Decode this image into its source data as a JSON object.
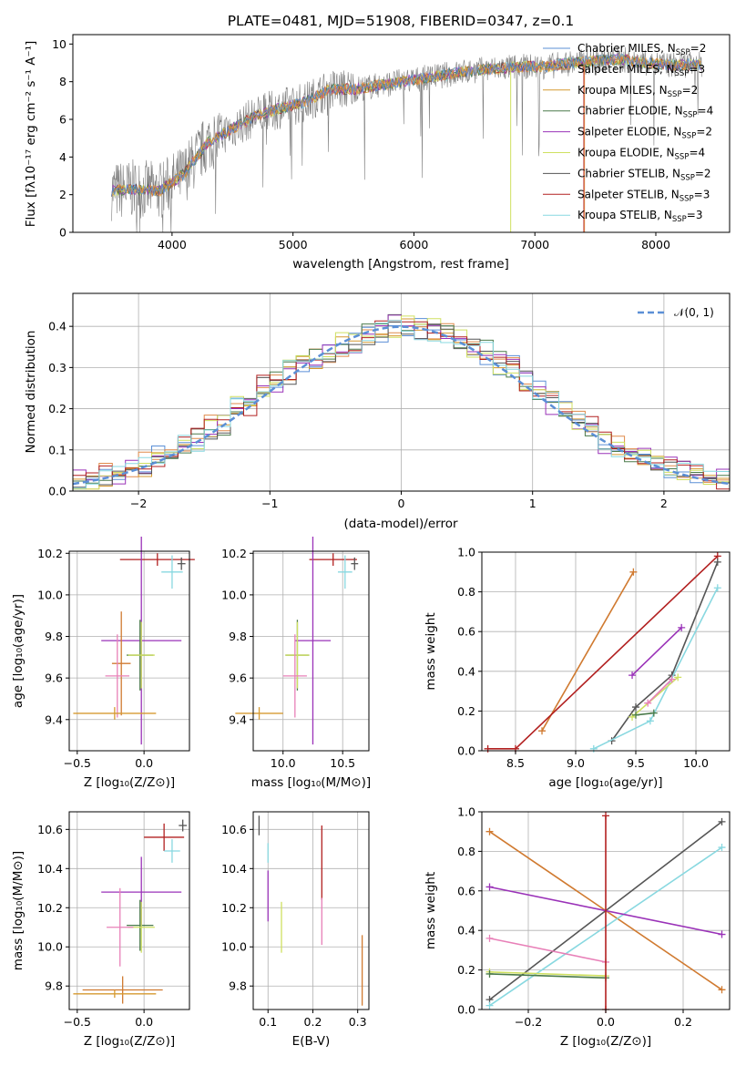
{
  "title": "PLATE=0481, MJD=51908, FIBERID=0347, z=0.1",
  "colors": {
    "c_miles": "#5b8fd6",
    "s_miles": "#e08a4a",
    "k_miles": "#d69a30",
    "c_elodie": "#4a7a4a",
    "s_elodie": "#9a32b8",
    "k_elodie": "#cfe060",
    "c_stelib": "#555555",
    "s_stelib": "#b22020",
    "k_stelib": "#88d8e0",
    "pink": "#e880b8",
    "orange": "#d07a30",
    "olive": "#9ac040",
    "gray": "#7f7f7f",
    "norm": "#5b8fd6"
  },
  "spectrum": {
    "xlabel": "wavelength [Angstrom, rest frame]",
    "ylabel": "Flux [fλ10⁻¹⁷ erg cm⁻² s⁻¹ A⁻¹]",
    "xticks": [
      "4000",
      "5000",
      "6000",
      "7000",
      "8000"
    ],
    "yticks": [
      "0",
      "2",
      "4",
      "6",
      "8",
      "10"
    ],
    "legend": [
      {
        "text": "Chabrier MILES, N",
        "sub": "SSP",
        "val": "=2",
        "color": "c_miles"
      },
      {
        "text": "Salpeter MILES, N",
        "sub": "SSP",
        "val": "=3",
        "color": "s_miles"
      },
      {
        "text": "Kroupa MILES, N",
        "sub": "SSP",
        "val": "=2",
        "color": "k_miles"
      },
      {
        "text": "Chabrier ELODIE, N",
        "sub": "SSP",
        "val": "=4",
        "color": "c_elodie"
      },
      {
        "text": "Salpeter ELODIE, N",
        "sub": "SSP",
        "val": "=2",
        "color": "s_elodie"
      },
      {
        "text": "Kroupa ELODIE, N",
        "sub": "SSP",
        "val": "=4",
        "color": "k_elodie"
      },
      {
        "text": "Chabrier STELIB, N",
        "sub": "SSP",
        "val": "=2",
        "color": "c_stelib"
      },
      {
        "text": "Salpeter STELIB, N",
        "sub": "SSP",
        "val": "=3",
        "color": "s_stelib"
      },
      {
        "text": "Kroupa STELIB, N",
        "sub": "SSP",
        "val": "=3",
        "color": "k_stelib"
      }
    ]
  },
  "hist": {
    "xlabel": "(data-model)/error",
    "ylabel": "Normed distribution",
    "xticks": [
      "−2",
      "−1",
      "0",
      "1",
      "2"
    ],
    "yticks": [
      "0.0",
      "0.1",
      "0.2",
      "0.3",
      "0.4"
    ],
    "legend_label": "𝒩(0, 1)"
  },
  "panels": {
    "age_z": {
      "xlabel": "Z [log₁₀(Z/Z⊙)]",
      "ylabel": "age  [log₁₀(age/yr)]",
      "xticks": [
        "−0.5",
        "0.0"
      ],
      "yticks": [
        "9.4",
        "9.6",
        "9.8",
        "10.0",
        "10.2"
      ]
    },
    "age_mass": {
      "xlabel": "mass [log₁₀(M/M⊙)]",
      "xticks": [
        "10.0",
        "10.5"
      ],
      "yticks": [
        "9.4",
        "9.6",
        "9.8",
        "10.0",
        "10.2"
      ]
    },
    "mw_age": {
      "xlabel": "age  [log₁₀(age/yr)]",
      "ylabel": "mass weight",
      "xticks": [
        "8.5",
        "9.0",
        "9.5",
        "10.0"
      ],
      "yticks": [
        "0.0",
        "0.2",
        "0.4",
        "0.6",
        "0.8",
        "1.0"
      ]
    },
    "mass_z": {
      "xlabel": "Z [log₁₀(Z/Z⊙)]",
      "ylabel": "mass [log₁₀(M/M⊙)]",
      "xticks": [
        "−0.5",
        "0.0"
      ],
      "yticks": [
        "9.8",
        "10.0",
        "10.2",
        "10.4",
        "10.6"
      ]
    },
    "mass_ebv": {
      "xlabel": "E(B-V)",
      "xticks": [
        "0.1",
        "0.2",
        "0.3"
      ],
      "yticks": [
        "9.8",
        "10.0",
        "10.2",
        "10.4",
        "10.6"
      ]
    },
    "mw_z": {
      "xlabel": "Z [log₁₀(Z/Z⊙)]",
      "ylabel": "mass weight",
      "xticks": [
        "−0.2",
        "0.0",
        "0.2"
      ],
      "yticks": [
        "0.0",
        "0.2",
        "0.4",
        "0.6",
        "0.8",
        "1.0"
      ]
    }
  },
  "chart_data": [
    {
      "type": "line",
      "id": "spectrum",
      "title": "PLATE=0481, MJD=51908, FIBERID=0347, z=0.1",
      "xlabel": "wavelength [Angstrom, rest frame]",
      "ylabel": "Flux [fλ10⁻¹⁷ erg cm⁻² s⁻¹ A⁻¹]",
      "xlim": [
        3180,
        8610
      ],
      "ylim": [
        0,
        10.5
      ],
      "series": [
        {
          "name": "data",
          "color": "gray",
          "x": [
            3500,
            3700,
            3900,
            4100,
            4300,
            4500,
            4700,
            4900,
            5100,
            5300,
            5500,
            5700,
            5900,
            6100,
            6300,
            6500,
            6700,
            6900,
            7100,
            7300,
            7500,
            7700,
            7900,
            8100,
            8300
          ],
          "y": [
            2.2,
            2.3,
            2.2,
            3.1,
            4.8,
            5.5,
            6.2,
            6.6,
            6.9,
            7.6,
            7.6,
            7.8,
            8.0,
            8.2,
            8.4,
            8.6,
            8.7,
            8.8,
            8.8,
            9.0,
            9.1,
            9.2,
            9.0,
            8.9,
            8.9
          ]
        }
      ]
    },
    {
      "type": "bar",
      "id": "residual_hist",
      "xlabel": "(data-model)/error",
      "ylabel": "Normed distribution",
      "xlim": [
        -2.5,
        2.5
      ],
      "ylim": [
        0,
        0.48
      ],
      "bin_edges": [
        -2.5,
        -2.3,
        -2.1,
        -1.9,
        -1.7,
        -1.5,
        -1.3,
        -1.1,
        -0.9,
        -0.7,
        -0.5,
        -0.3,
        -0.1,
        0.1,
        0.3,
        0.5,
        0.7,
        0.9,
        1.1,
        1.3,
        1.5,
        1.7,
        1.9,
        2.1,
        2.3,
        2.5
      ],
      "values": [
        0.03,
        0.045,
        0.07,
        0.09,
        0.13,
        0.17,
        0.22,
        0.28,
        0.3,
        0.33,
        0.35,
        0.38,
        0.4,
        0.4,
        0.38,
        0.35,
        0.32,
        0.27,
        0.22,
        0.17,
        0.12,
        0.09,
        0.07,
        0.05,
        0.04
      ],
      "normal_curve": {
        "name": "𝒩(0, 1)",
        "mu": 0,
        "sigma": 1
      }
    },
    {
      "type": "scatter",
      "id": "age_vs_Z",
      "xlim": [
        -0.56,
        0.34
      ],
      "ylim": [
        9.25,
        10.21
      ],
      "points": [
        {
          "x": 0.1,
          "y": 10.17,
          "xerr": 0.28,
          "yerr": 0.03,
          "color": "s_stelib"
        },
        {
          "x": 0.28,
          "y": 10.15,
          "xerr": 0.03,
          "yerr": 0.03,
          "color": "c_stelib"
        },
        {
          "x": 0.21,
          "y": 10.11,
          "xerr": 0.08,
          "yerr": 0.08,
          "color": "k_stelib"
        },
        {
          "x": -0.02,
          "y": 9.78,
          "xerr": 0.3,
          "yerr": 0.5,
          "color": "s_elodie"
        },
        {
          "x": -0.03,
          "y": 9.71,
          "xerr": 0.1,
          "yerr": 0.17,
          "color": "c_elodie"
        },
        {
          "x": -0.02,
          "y": 9.71,
          "xerr": 0.1,
          "yerr": 0.16,
          "color": "k_elodie"
        },
        {
          "x": -0.17,
          "y": 9.67,
          "xerr": 0.07,
          "yerr": 0.25,
          "color": "orange"
        },
        {
          "x": -0.2,
          "y": 9.61,
          "xerr": 0.09,
          "yerr": 0.2,
          "color": "pink"
        },
        {
          "x": -0.22,
          "y": 9.43,
          "xerr": 0.31,
          "yerr": 0.03,
          "color": "k_miles"
        }
      ]
    },
    {
      "type": "scatter",
      "id": "age_vs_mass",
      "xlim": [
        9.75,
        10.72
      ],
      "ylim": [
        9.25,
        10.21
      ],
      "points": [
        {
          "x": 10.42,
          "y": 10.17,
          "xerr": 0.2,
          "yerr": 0.03,
          "color": "s_stelib"
        },
        {
          "x": 10.6,
          "y": 10.15,
          "xerr": 0.03,
          "yerr": 0.03,
          "color": "c_stelib"
        },
        {
          "x": 10.52,
          "y": 10.11,
          "xerr": 0.06,
          "yerr": 0.08,
          "color": "k_stelib"
        },
        {
          "x": 10.25,
          "y": 9.78,
          "xerr": 0.15,
          "yerr": 0.5,
          "color": "s_elodie"
        },
        {
          "x": 10.12,
          "y": 9.71,
          "xerr": 0.1,
          "yerr": 0.17,
          "color": "c_elodie"
        },
        {
          "x": 10.12,
          "y": 9.71,
          "xerr": 0.1,
          "yerr": 0.16,
          "color": "k_elodie"
        },
        {
          "x": 10.1,
          "y": 9.61,
          "xerr": 0.1,
          "yerr": 0.2,
          "color": "pink"
        },
        {
          "x": 9.8,
          "y": 9.43,
          "xerr": 0.2,
          "yerr": 0.03,
          "color": "k_miles"
        }
      ]
    },
    {
      "type": "line",
      "id": "massweight_vs_age",
      "xlim": [
        8.22,
        10.28
      ],
      "ylim": [
        0,
        1
      ],
      "series": [
        {
          "color": "orange",
          "x": [
            8.72,
            9.48
          ],
          "y": [
            0.1,
            0.9
          ]
        },
        {
          "color": "s_stelib",
          "x": [
            8.27,
            8.5,
            10.18
          ],
          "y": [
            0.01,
            0.01,
            0.98
          ]
        },
        {
          "color": "c_stelib",
          "x": [
            9.3,
            9.5,
            9.8,
            10.18
          ],
          "y": [
            0.05,
            0.22,
            0.38,
            0.95
          ]
        },
        {
          "color": "k_stelib",
          "x": [
            9.15,
            9.62,
            10.18
          ],
          "y": [
            0.01,
            0.15,
            0.82
          ]
        },
        {
          "color": "s_elodie",
          "x": [
            9.47,
            9.88
          ],
          "y": [
            0.38,
            0.62
          ]
        },
        {
          "color": "k_elodie",
          "x": [
            9.47,
            9.85
          ],
          "y": [
            0.17,
            0.37
          ]
        },
        {
          "color": "pink",
          "x": [
            9.6,
            9.8
          ],
          "y": [
            0.24,
            0.36
          ]
        },
        {
          "color": "c_elodie",
          "x": [
            9.5,
            9.65
          ],
          "y": [
            0.18,
            0.19
          ]
        }
      ]
    },
    {
      "type": "scatter",
      "id": "mass_vs_Z",
      "xlim": [
        -0.56,
        0.34
      ],
      "ylim": [
        9.68,
        10.69
      ],
      "points": [
        {
          "x": 0.15,
          "y": 10.56,
          "xerr": 0.15,
          "yerr": 0.07,
          "color": "s_stelib"
        },
        {
          "x": 0.29,
          "y": 10.62,
          "xerr": 0.03,
          "yerr": 0.03,
          "color": "c_stelib"
        },
        {
          "x": 0.21,
          "y": 10.49,
          "xerr": 0.06,
          "yerr": 0.06,
          "color": "k_stelib"
        },
        {
          "x": -0.02,
          "y": 10.28,
          "xerr": 0.3,
          "yerr": 0.18,
          "color": "s_elodie"
        },
        {
          "x": -0.03,
          "y": 10.11,
          "xerr": 0.1,
          "yerr": 0.13,
          "color": "c_elodie"
        },
        {
          "x": -0.02,
          "y": 10.1,
          "xerr": 0.1,
          "yerr": 0.13,
          "color": "k_elodie"
        },
        {
          "x": -0.18,
          "y": 10.1,
          "xerr": 0.1,
          "yerr": 0.2,
          "color": "pink"
        },
        {
          "x": -0.16,
          "y": 9.78,
          "xerr": 0.3,
          "yerr": 0.07,
          "color": "orange"
        },
        {
          "x": -0.22,
          "y": 9.76,
          "xerr": 0.31,
          "yerr": 0.02,
          "color": "k_miles"
        }
      ]
    },
    {
      "type": "scatter",
      "id": "mass_vs_EBV",
      "xlim": [
        0.067,
        0.325
      ],
      "ylim": [
        9.68,
        10.69
      ],
      "points": [
        {
          "x": 0.08,
          "y": 10.62,
          "yerr": 0.05,
          "color": "c_stelib"
        },
        {
          "x": 0.1,
          "y": 10.48,
          "yerr": 0.05,
          "color": "k_stelib"
        },
        {
          "x": 0.1,
          "y": 10.26,
          "yerr": 0.13,
          "color": "s_elodie"
        },
        {
          "x": 0.13,
          "y": 10.1,
          "yerr": 0.13,
          "color": "k_elodie"
        },
        {
          "x": 0.22,
          "y": 10.43,
          "yerr": 0.19,
          "color": "s_stelib"
        },
        {
          "x": 0.22,
          "y": 10.13,
          "yerr": 0.12,
          "color": "pink"
        },
        {
          "x": 0.31,
          "y": 9.88,
          "yerr": 0.18,
          "color": "orange"
        }
      ]
    },
    {
      "type": "line",
      "id": "massweight_vs_Z",
      "xlim": [
        -0.32,
        0.32
      ],
      "ylim": [
        0,
        1
      ],
      "series": [
        {
          "color": "orange",
          "x": [
            -0.3,
            0.3
          ],
          "y": [
            0.9,
            0.1
          ]
        },
        {
          "color": "c_stelib",
          "x": [
            -0.3,
            0.3
          ],
          "y": [
            0.05,
            0.95
          ]
        },
        {
          "color": "k_stelib",
          "x": [
            -0.3,
            0.3
          ],
          "y": [
            0.02,
            0.82
          ]
        },
        {
          "color": "s_elodie",
          "x": [
            -0.3,
            0.3
          ],
          "y": [
            0.62,
            0.38
          ]
        },
        {
          "color": "pink",
          "x": [
            -0.3,
            0.0
          ],
          "y": [
            0.36,
            0.24
          ]
        },
        {
          "color": "k_elodie",
          "x": [
            -0.3,
            0.0
          ],
          "y": [
            0.19,
            0.17
          ]
        },
        {
          "color": "c_elodie",
          "x": [
            -0.3,
            0.0
          ],
          "y": [
            0.18,
            0.16
          ]
        },
        {
          "color": "s_stelib",
          "x": [
            0.0,
            0.0
          ],
          "y": [
            0.0,
            0.98
          ]
        }
      ]
    }
  ]
}
